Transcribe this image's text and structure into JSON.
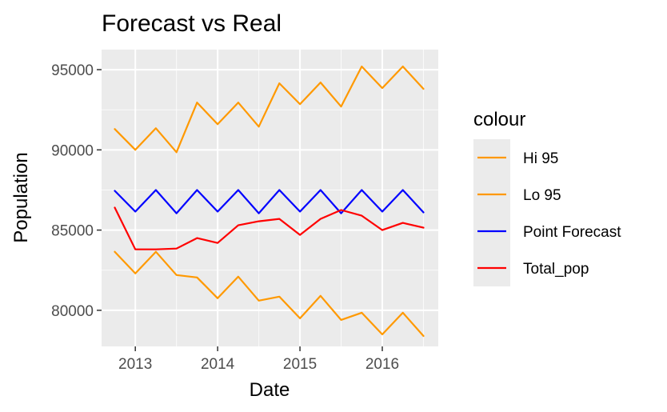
{
  "chart_data": {
    "type": "line",
    "title": "Forecast vs Real",
    "xlabel": "Date",
    "ylabel": "Population",
    "xlim": [
      2012.59,
      2016.68
    ],
    "ylim": [
      77750,
      96250
    ],
    "x_ticks": [
      2013,
      2014,
      2015,
      2016
    ],
    "x_tick_labels": [
      "2013",
      "2014",
      "2015",
      "2016"
    ],
    "y_ticks": [
      80000,
      85000,
      90000,
      95000
    ],
    "y_tick_labels": [
      "80000",
      "85000",
      "90000",
      "95000"
    ],
    "grid": true,
    "legend": {
      "title": "colour",
      "placement": "right"
    },
    "x": [
      2012.75,
      2013.0,
      2013.25,
      2013.5,
      2013.75,
      2014.0,
      2014.25,
      2014.5,
      2014.75,
      2015.0,
      2015.25,
      2015.5,
      2015.75,
      2016.0,
      2016.25,
      2016.5
    ],
    "series": [
      {
        "name": "Hi 95",
        "color": "#ff9900",
        "values": [
          91300,
          90000,
          91350,
          89850,
          92950,
          91600,
          92950,
          91450,
          94150,
          92850,
          94200,
          92700,
          95200,
          93850,
          95200,
          93800
        ]
      },
      {
        "name": "Lo 95",
        "color": "#ff9900",
        "values": [
          83650,
          82300,
          83650,
          82200,
          82050,
          80750,
          82100,
          80600,
          80850,
          79500,
          80900,
          79400,
          79850,
          78500,
          79850,
          78400
        ]
      },
      {
        "name": "Point Forecast",
        "color": "#0000ff",
        "values": [
          87450,
          86150,
          87500,
          86050,
          87500,
          86150,
          87500,
          86050,
          87500,
          86150,
          87500,
          86050,
          87500,
          86150,
          87500,
          86100
        ]
      },
      {
        "name": "Total_pop",
        "color": "#ff0000",
        "values": [
          86400,
          83800,
          83800,
          83850,
          84500,
          84200,
          85300,
          85550,
          85700,
          84700,
          85700,
          86250,
          85900,
          85000,
          85450,
          85150
        ]
      }
    ]
  }
}
